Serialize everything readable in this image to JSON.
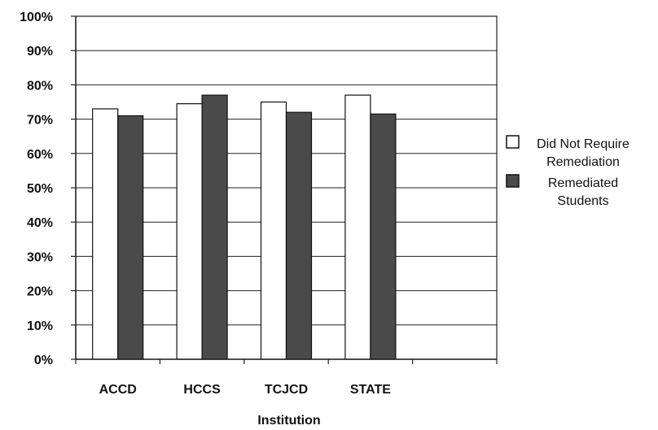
{
  "chart_data": {
    "type": "bar",
    "categories": [
      "ACCD",
      "HCCS",
      "TCJCD",
      "STATE"
    ],
    "series": [
      {
        "name": "Did Not Require Remediation",
        "values": [
          73,
          74.5,
          75,
          77
        ],
        "color": "#ffffff"
      },
      {
        "name": "Remediated Students",
        "values": [
          71,
          77,
          72,
          71.5
        ],
        "color": "#4a4a4a"
      }
    ],
    "legend_lines": [
      [
        "Did Not Require",
        "Remediation"
      ],
      [
        "Remediated",
        "Students"
      ]
    ],
    "xlabel": "Institution",
    "ylabel": "",
    "ylim": [
      0,
      100
    ],
    "yticks": [
      "0%",
      "10%",
      "20%",
      "30%",
      "40%",
      "50%",
      "60%",
      "70%",
      "80%",
      "90%",
      "100%"
    ],
    "grid": true,
    "legend_position": "right"
  }
}
